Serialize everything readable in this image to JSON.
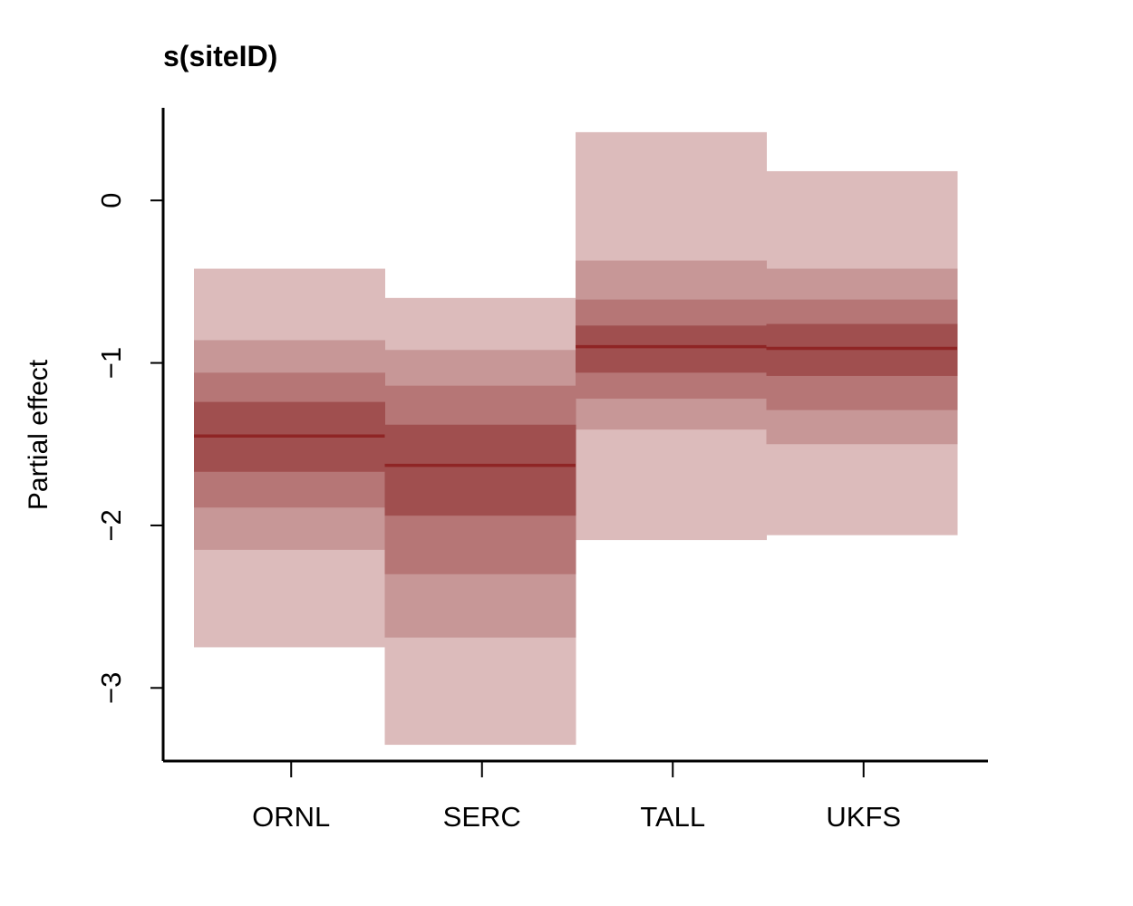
{
  "chart_data": {
    "type": "bar",
    "title": "s(siteID)",
    "xlabel": "",
    "ylabel": "Partial effect",
    "categories": [
      "ORNL",
      "SERC",
      "TALL",
      "UKFS"
    ],
    "y_ticks": [
      0,
      -1,
      -2,
      -3
    ],
    "y_tick_labels": [
      "0",
      "−1",
      "−2",
      "−3"
    ],
    "ylim": [
      -3.45,
      0.57
    ],
    "grid": false,
    "legend": "none",
    "median": [
      -1.45,
      -1.63,
      -0.9,
      -0.91
    ],
    "bands": [
      {
        "level": "outer",
        "lower": [
          -2.75,
          -3.35,
          -2.09,
          -2.06
        ],
        "upper": [
          -0.42,
          -0.6,
          0.42,
          0.18
        ]
      },
      {
        "level": "second",
        "lower": [
          -2.15,
          -2.69,
          -1.41,
          -1.5
        ],
        "upper": [
          -0.86,
          -0.92,
          -0.37,
          -0.42
        ]
      },
      {
        "level": "third",
        "lower": [
          -1.89,
          -2.3,
          -1.22,
          -1.29
        ],
        "upper": [
          -1.06,
          -1.14,
          -0.61,
          -0.61
        ]
      },
      {
        "level": "inner",
        "lower": [
          -1.67,
          -1.94,
          -1.06,
          -1.08
        ],
        "upper": [
          -1.24,
          -1.38,
          -0.77,
          -0.76
        ]
      }
    ],
    "colors": {
      "outer": "#dcbbbb",
      "second": "#c79797",
      "third": "#b67676",
      "inner": "#a04f4f",
      "median": "#8f2525",
      "axis": "#000000"
    }
  }
}
